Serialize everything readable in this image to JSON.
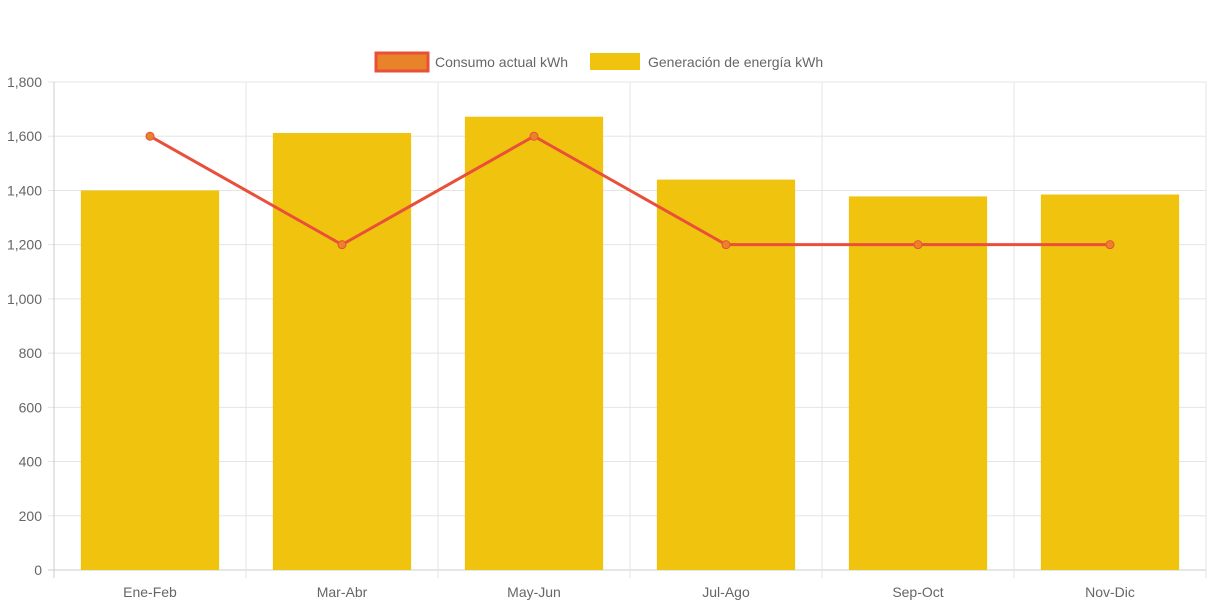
{
  "chart_data": {
    "type": "bar",
    "categories": [
      "Ene-Feb",
      "Mar-Abr",
      "May-Jun",
      "Jul-Ago",
      "Sep-Oct",
      "Nov-Dic"
    ],
    "series": [
      {
        "name": "Consumo actual kWh",
        "type": "line",
        "values": [
          1600,
          1200,
          1600,
          1200,
          1200,
          1200
        ],
        "color": "#e8503a",
        "point_color": "#e8832a"
      },
      {
        "name": "Generación de energía kWh",
        "type": "bar",
        "values": [
          1400,
          1612,
          1672,
          1440,
          1378,
          1385
        ],
        "color": "#f0c40e"
      }
    ],
    "ylim": [
      0,
      1800
    ],
    "yticks": [
      "0",
      "200",
      "400",
      "600",
      "800",
      "1,000",
      "1,200",
      "1,400",
      "1,600",
      "1,800"
    ],
    "grid": true,
    "legend_position": "top-center",
    "title": "",
    "xlabel": "",
    "ylabel": ""
  }
}
